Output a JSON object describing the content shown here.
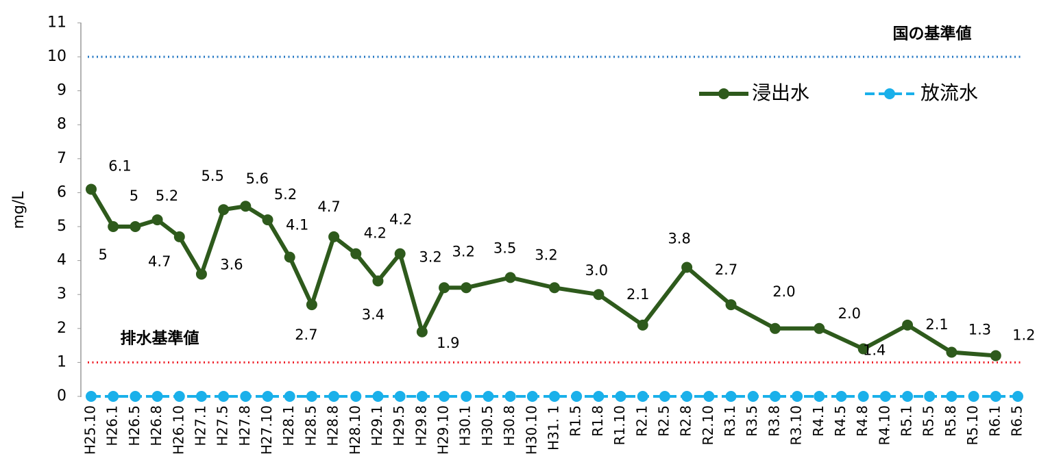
{
  "chart_data": {
    "type": "line",
    "y_label": "mg/L",
    "categories": [
      "H25.10",
      "H26.1",
      "H26.5",
      "H26.8",
      "H26.10",
      "H27.1",
      "H27.5",
      "H27.8",
      "H27.10",
      "H28.1",
      "H28.5",
      "H28.8",
      "H28.10",
      "H29.1",
      "H29.5",
      "H29.8",
      "H29.10",
      "H30.1",
      "H30.5",
      "H30.8",
      "H30.10",
      "H31. 1",
      "R1.5",
      "R1.8",
      "R1.10",
      "R2.1",
      "R2.5",
      "R2.8",
      "R2.10",
      "R3.1",
      "R3.5",
      "R3.8",
      "R3.10",
      "R4.1",
      "R4.5",
      "R4.8",
      "R4.10",
      "R5.1",
      "R5.5",
      "R5.8",
      "R5.10",
      "R6.1",
      "R6.5"
    ],
    "series": [
      {
        "name": "浸出水",
        "color": "#2e5a1c",
        "dashed": false,
        "connect_gaps": true,
        "values": [
          6.1,
          5,
          5,
          5.2,
          4.7,
          3.6,
          5.5,
          5.6,
          5.2,
          4.1,
          2.7,
          4.7,
          4.2,
          3.4,
          4.2,
          1.9,
          3.2,
          3.2,
          null,
          3.5,
          null,
          3.2,
          null,
          3.0,
          null,
          2.1,
          null,
          3.8,
          null,
          2.7,
          null,
          2.0,
          null,
          2.0,
          null,
          1.4,
          null,
          2.1,
          null,
          1.3,
          null,
          1.2,
          null
        ],
        "value_labels": [
          "6.1",
          "5",
          "5",
          "5.2",
          "4.7",
          "3.6",
          "5.5",
          "5.6",
          "5.2",
          "4.1",
          "2.7",
          "4.7",
          "4.2",
          "3.4",
          "4.2",
          "1.9",
          "3.2",
          "3.2",
          null,
          "3.5",
          null,
          "3.2",
          null,
          "3.0",
          null,
          "2.1",
          null,
          "3.8",
          null,
          "2.7",
          null,
          "2.0",
          null,
          "2.0",
          null,
          "1.4",
          null,
          "2.1",
          null,
          "1.3",
          null,
          "1.2",
          null
        ]
      },
      {
        "name": "放流水",
        "color": "#1ab0ea",
        "dashed": true,
        "connect_gaps": true,
        "values": [
          0,
          0,
          0,
          0,
          0,
          0,
          0,
          0,
          0,
          0,
          0,
          0,
          0,
          0,
          0,
          0,
          0,
          0,
          0,
          0,
          0,
          0,
          0,
          0,
          0,
          0,
          0,
          0,
          0,
          0,
          0,
          0,
          0,
          0,
          0,
          0,
          0,
          0,
          0,
          0,
          0,
          0,
          0
        ]
      }
    ],
    "reference_lines": [
      {
        "label": "国の基準値",
        "value": 10,
        "color": "#1f74c2"
      },
      {
        "label": "排水基準値",
        "value": 1,
        "color": "#ee1c25"
      }
    ],
    "ylim": [
      0,
      11
    ],
    "yticks": [
      0,
      1,
      2,
      3,
      4,
      5,
      6,
      7,
      8,
      9,
      10,
      11
    ],
    "legend": "top-right"
  }
}
